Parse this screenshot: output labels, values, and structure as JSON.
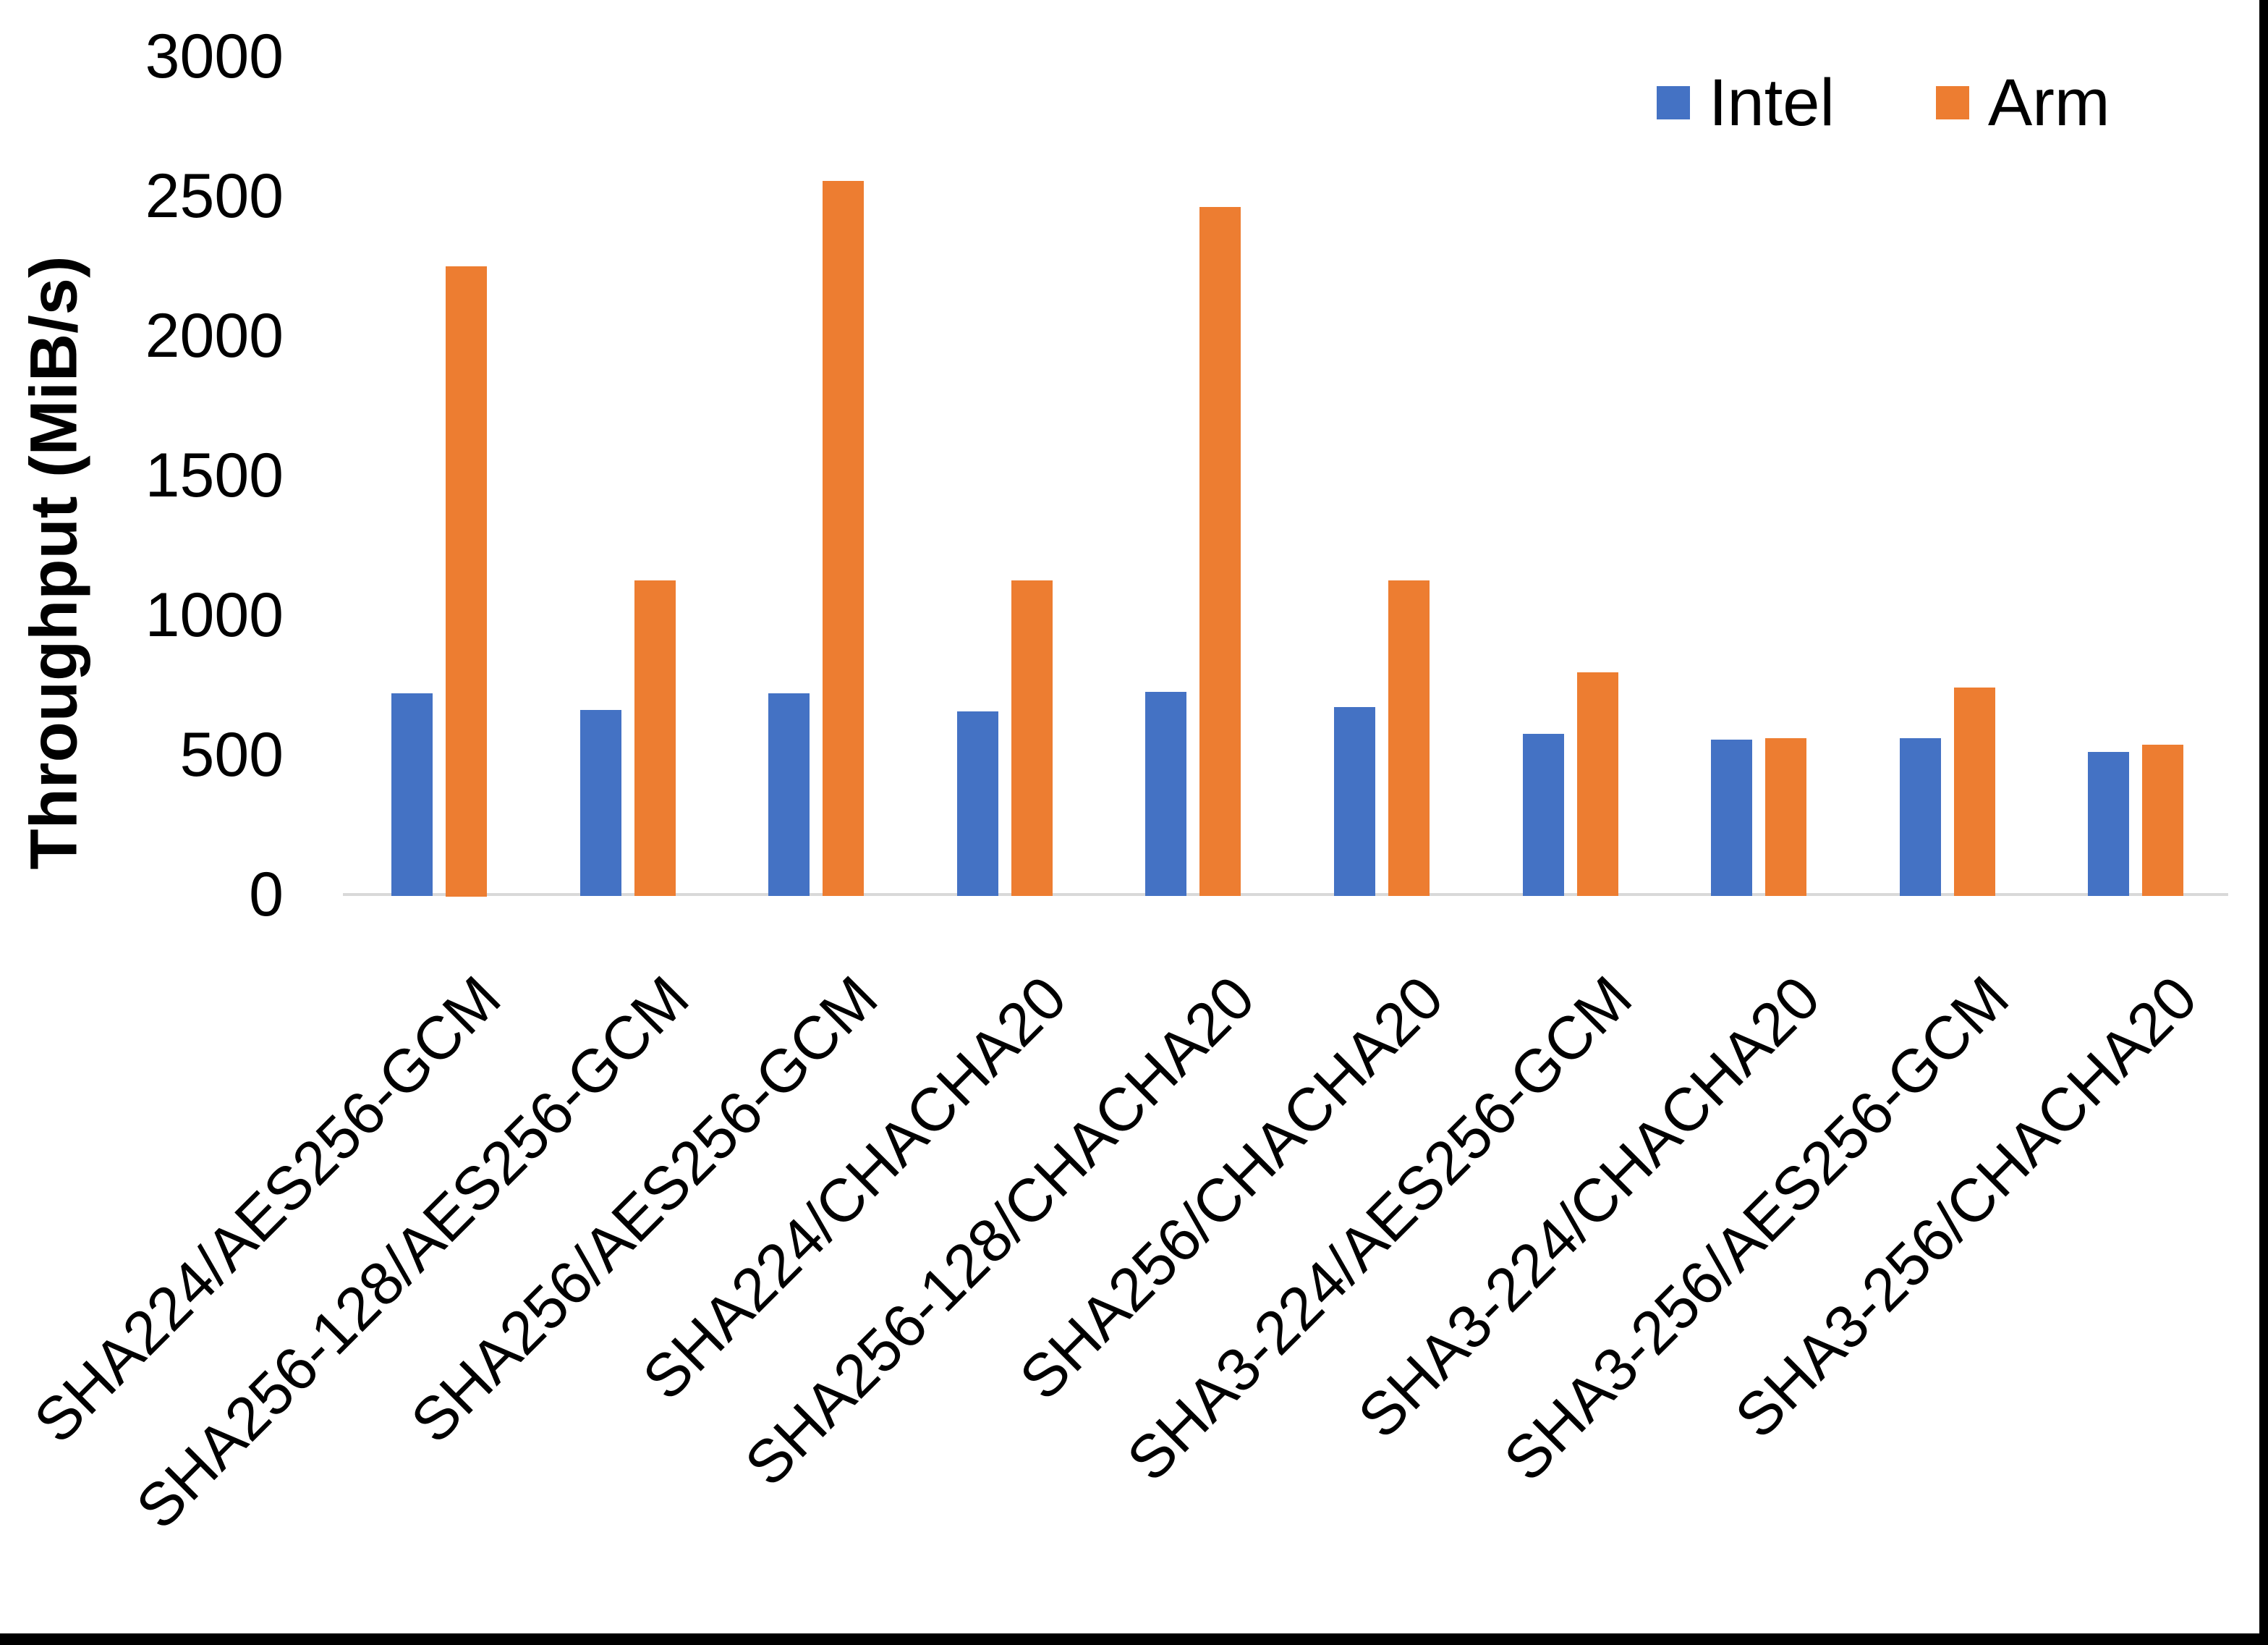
{
  "figure": {
    "background": "#FFFFFF",
    "edge_border_color": "#000000",
    "axis_line_color": "#D9D9D9",
    "text_color": "#000000"
  },
  "chart_data": {
    "type": "bar",
    "title": "",
    "ylabel": "Throughput (MiB/s)",
    "xlabel": "",
    "ylim": [
      0,
      3000
    ],
    "yticks": [
      0,
      500,
      1000,
      1500,
      2000,
      2500,
      3000
    ],
    "grid": false,
    "legend_position": "top-right",
    "categories": [
      "SHA224/AES256-GCM",
      "SHA256-128/AES256-GCM",
      "SHA256/AES256-GCM",
      "SHA224/CHACHA20",
      "SHA256-128/CHACHA20",
      "SHA256/CHACHA20",
      "SHA3-224/AES256-GCM",
      "SHA3-224/CHACHA20",
      "SHA3-256/AES256-GCM",
      "SHA3-256/CHACHA20"
    ],
    "series": [
      {
        "name": "Intel",
        "color": "#4472C4",
        "values": [
          720,
          660,
          720,
          655,
          725,
          670,
          575,
          555,
          560,
          510
        ]
      },
      {
        "name": "Arm",
        "color": "#ED7D31",
        "values": [
          2250,
          1125,
          2555,
          1125,
          2460,
          1125,
          795,
          560,
          740,
          535
        ]
      }
    ]
  }
}
